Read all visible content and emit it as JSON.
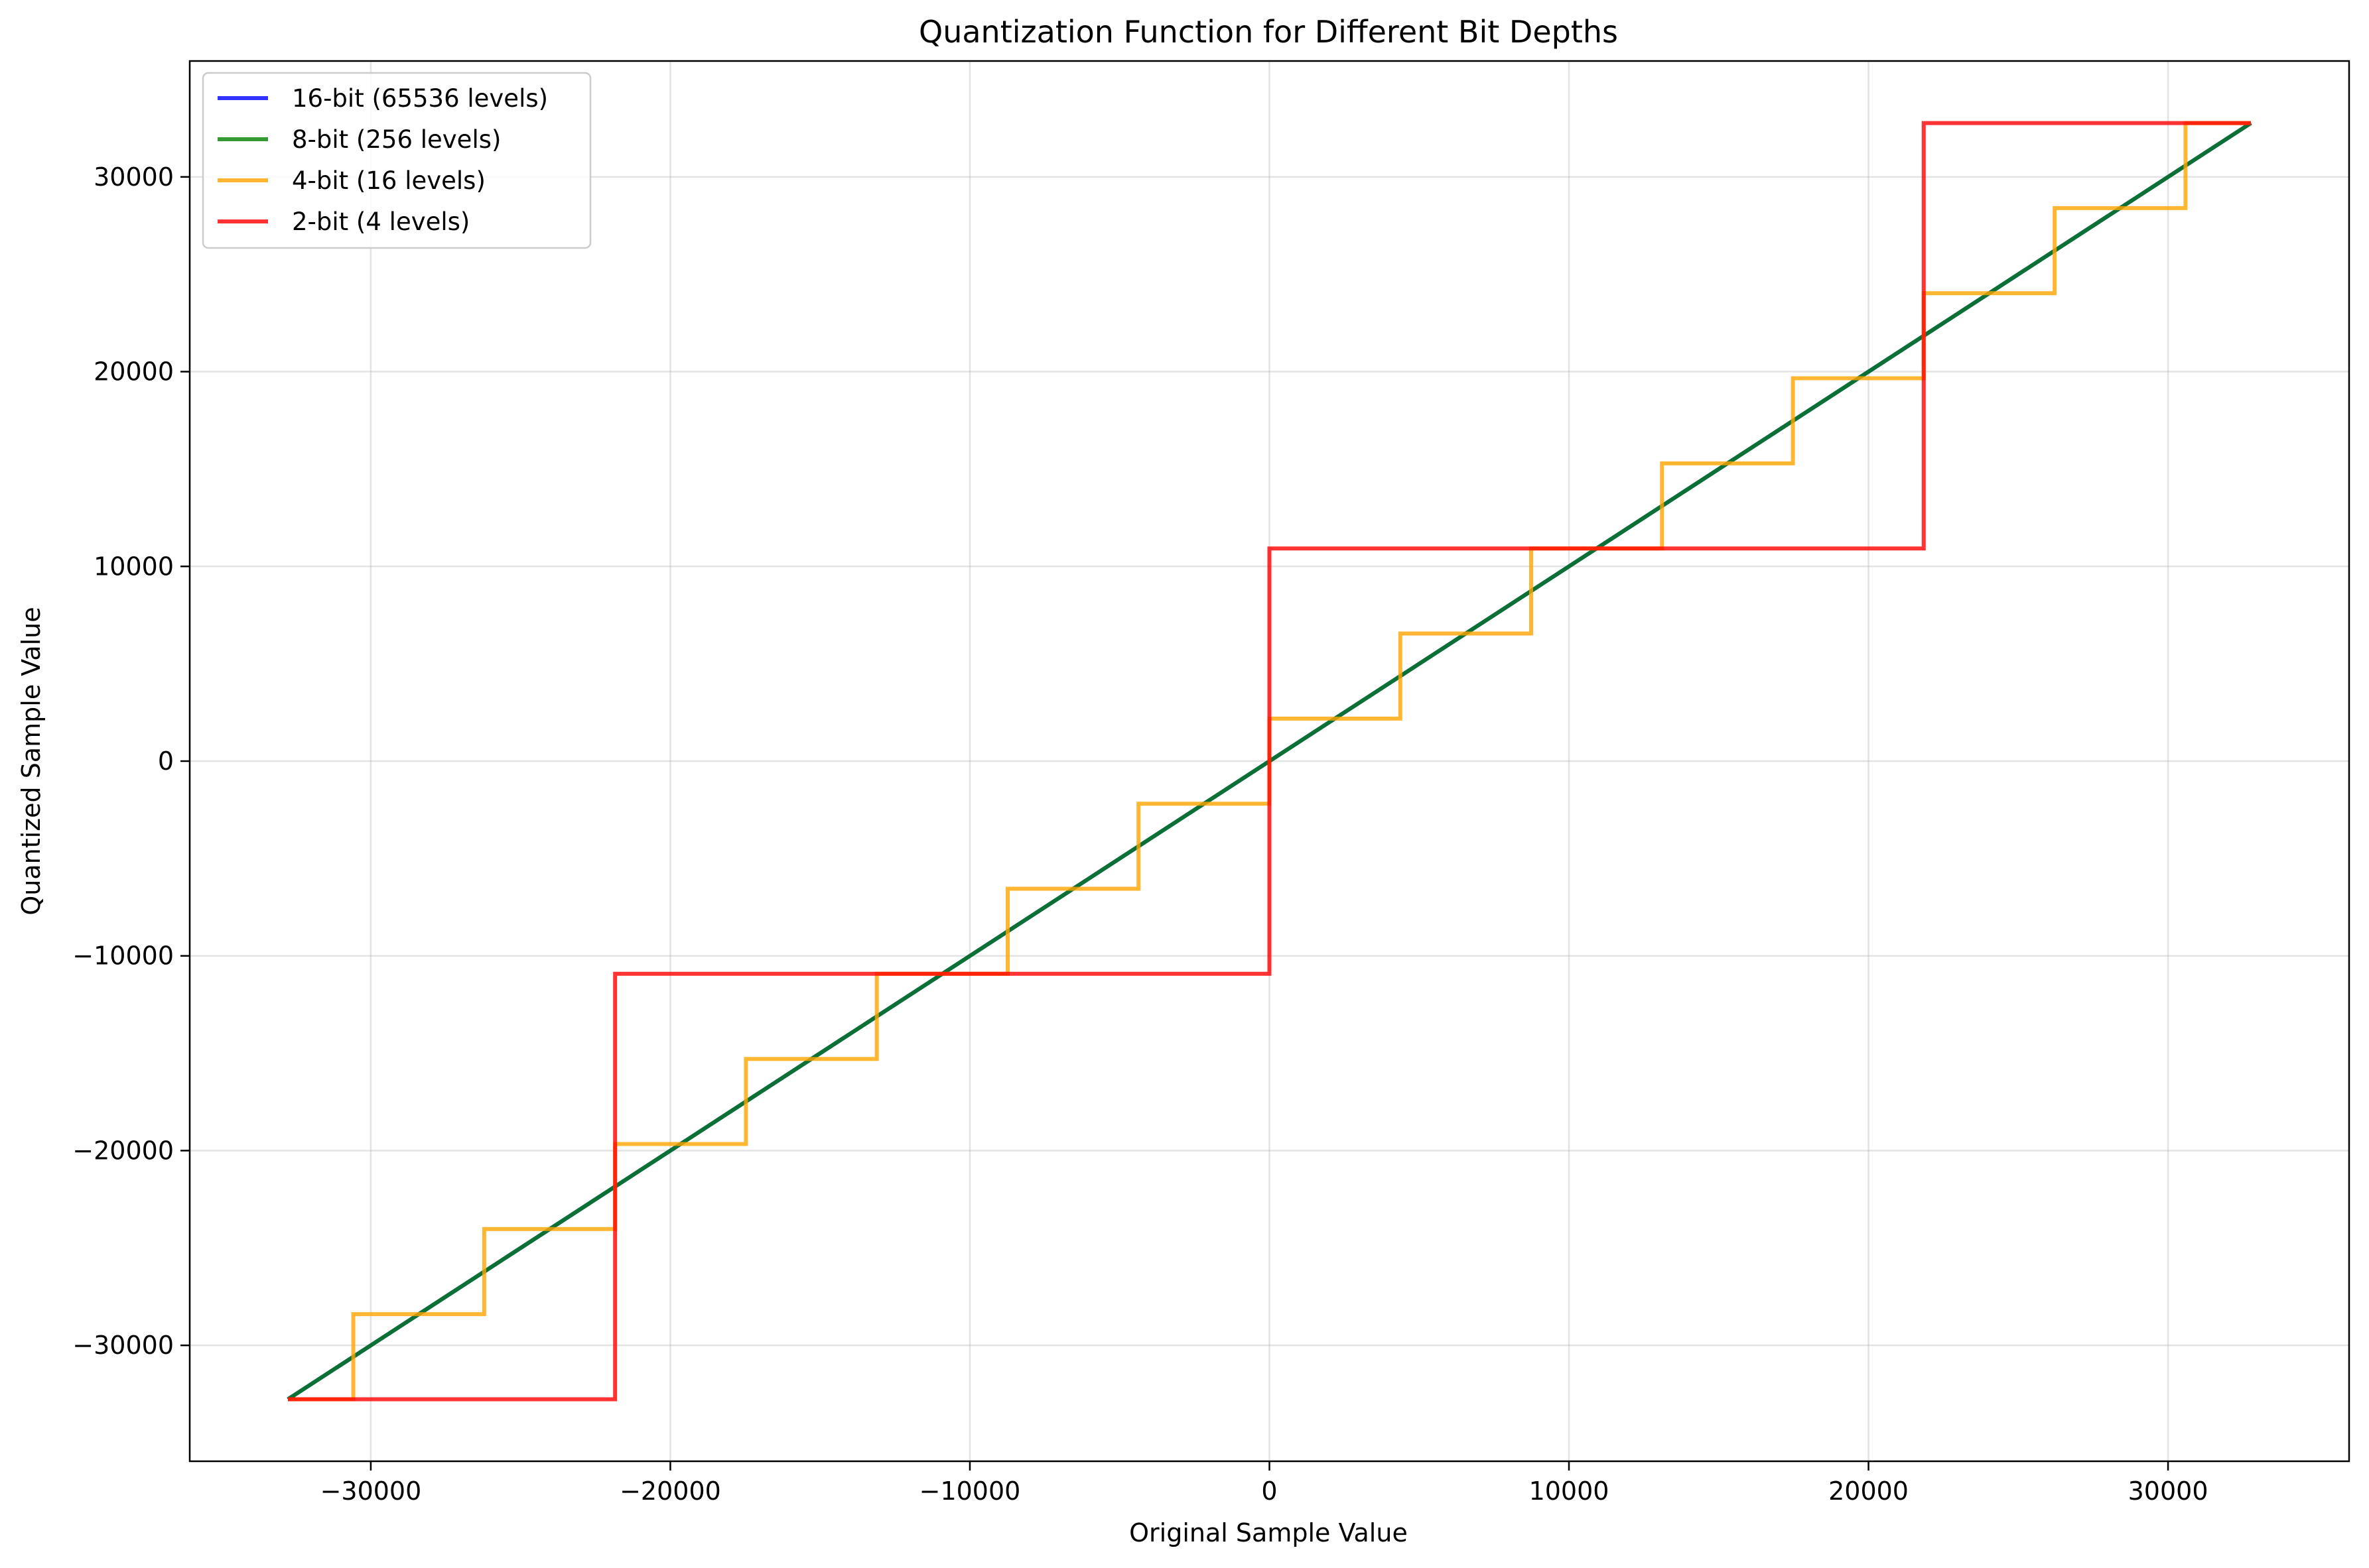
{
  "chart_data": {
    "type": "line",
    "title": "Quantization Function for Different Bit Depths",
    "xlabel": "Original Sample Value",
    "ylabel": "Quantized Sample Value",
    "xlim": [
      -36044.8,
      36044.8
    ],
    "ylim": [
      -35952,
      35952
    ],
    "xticks": [
      -30000,
      -20000,
      -10000,
      0,
      10000,
      20000,
      30000
    ],
    "yticks": [
      -30000,
      -20000,
      -10000,
      0,
      10000,
      20000,
      30000
    ],
    "xtick_labels": [
      "−30000",
      "−20000",
      "−10000",
      "0",
      "10000",
      "20000",
      "30000"
    ],
    "ytick_labels": [
      "−30000",
      "−20000",
      "−10000",
      "0",
      "10000",
      "20000",
      "30000"
    ],
    "grid": true,
    "legend_position": "top-left",
    "series": [
      {
        "name": "16-bit (65536 levels)",
        "color": "#0000ff",
        "x": [
          -32768,
          32767
        ],
        "y": [
          -32768,
          32767
        ]
      },
      {
        "name": "8-bit (256 levels)",
        "color": "#008000",
        "x": [
          -32768,
          32767
        ],
        "y": [
          -32768,
          32767
        ]
      },
      {
        "name": "4-bit (16 levels)",
        "color": "#ffa500",
        "x": [
          -32768,
          -30583,
          -30583,
          -26214,
          -26214,
          -21845,
          -21845,
          -17476,
          -17476,
          -13107,
          -13107,
          -8738,
          -8738,
          -4369,
          -4369,
          0,
          0,
          4369,
          4369,
          8738,
          8738,
          13107,
          13107,
          17476,
          17476,
          21845,
          21845,
          26214,
          26214,
          30583,
          30583,
          32767
        ],
        "y": [
          -32768,
          -32768,
          -28399,
          -28399,
          -24030,
          -24030,
          -19661,
          -19661,
          -15292,
          -15292,
          -10923,
          -10923,
          -6554,
          -6554,
          -2185,
          -2185,
          2184,
          2184,
          6553,
          6553,
          10922,
          10922,
          15291,
          15291,
          19660,
          19660,
          24029,
          24029,
          28398,
          28398,
          32767,
          32767
        ]
      },
      {
        "name": "2-bit (4 levels)",
        "color": "#ff0000",
        "x": [
          -32768,
          -21845,
          -21845,
          0,
          0,
          21845,
          21845,
          32767
        ],
        "y": [
          -32768,
          -32768,
          -10923,
          -10923,
          10922,
          10922,
          32767,
          32767
        ]
      }
    ]
  }
}
